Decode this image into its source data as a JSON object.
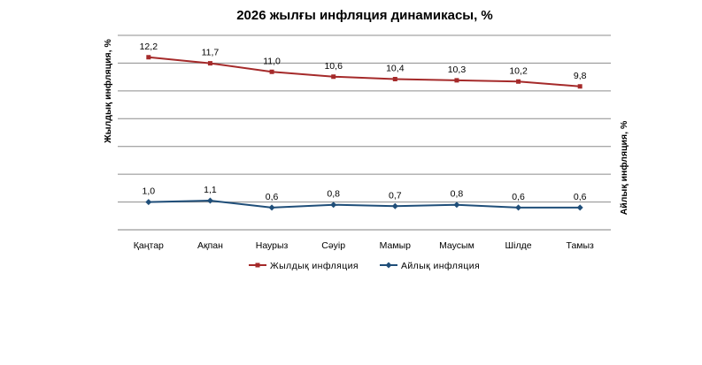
{
  "chart_data": {
    "type": "line",
    "title": "2026 жылғы инфляция динамикасы, %",
    "ylabel": "Жылдық инфляция, %",
    "y2label": "Айлық инфляция, %",
    "xlabel": "",
    "categories": [
      "Қаңтар",
      "Ақпан",
      "Наурыз",
      "Сәуір",
      "Мамыр",
      "Маусым",
      "Шілде",
      "Тамыз"
    ],
    "series": [
      {
        "name": "Жылдық инфляция",
        "color": "#a52a2a",
        "marker": "square",
        "axis": "left",
        "values": [
          12.2,
          11.7,
          11.0,
          10.6,
          10.4,
          10.3,
          10.2,
          9.8
        ],
        "labels": [
          "12,2",
          "11,7",
          "11,0",
          "10,6",
          "10,4",
          "10,3",
          "10,2",
          "9,8"
        ]
      },
      {
        "name": "Айлық инфляция",
        "color": "#1f4e79",
        "marker": "diamond",
        "axis": "right",
        "values": [
          1.0,
          1.1,
          0.6,
          0.8,
          0.7,
          0.8,
          0.6,
          0.6
        ],
        "labels": [
          "1,0",
          "1,1",
          "0,6",
          "0,8",
          "0,7",
          "0,8",
          "0,6",
          "0,6"
        ]
      }
    ],
    "ylim": [
      -2,
      14
    ],
    "y2lim": [
      -1,
      13
    ],
    "grid": true,
    "legend": "bottom",
    "tick_labels_visible": false
  }
}
